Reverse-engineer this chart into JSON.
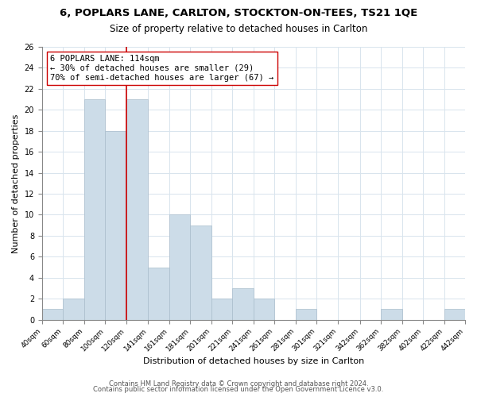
{
  "title": "6, POPLARS LANE, CARLTON, STOCKTON-ON-TEES, TS21 1QE",
  "subtitle": "Size of property relative to detached houses in Carlton",
  "xlabel": "Distribution of detached houses by size in Carlton",
  "ylabel": "Number of detached properties",
  "bar_color": "#ccdce8",
  "bar_edgecolor": "#aabdcc",
  "vline_x": 120,
  "vline_color": "#cc0000",
  "annotation_line1": "6 POPLARS LANE: 114sqm",
  "annotation_line2": "← 30% of detached houses are smaller (29)",
  "annotation_line3": "70% of semi-detached houses are larger (67) →",
  "bins": [
    40,
    60,
    80,
    100,
    120,
    141,
    161,
    181,
    201,
    221,
    241,
    261,
    281,
    301,
    321,
    342,
    362,
    382,
    402,
    422,
    442
  ],
  "counts": [
    1,
    2,
    21,
    18,
    21,
    5,
    10,
    9,
    2,
    3,
    2,
    0,
    1,
    0,
    0,
    0,
    1,
    0,
    0,
    1
  ],
  "ylim": [
    0,
    26
  ],
  "yticks": [
    0,
    2,
    4,
    6,
    8,
    10,
    12,
    14,
    16,
    18,
    20,
    22,
    24,
    26
  ],
  "footnote1": "Contains HM Land Registry data © Crown copyright and database right 2024.",
  "footnote2": "Contains public sector information licensed under the Open Government Licence v3.0.",
  "background_color": "#ffffff",
  "grid_color": "#d8e4ed",
  "title_fontsize": 9.5,
  "subtitle_fontsize": 8.5,
  "annotation_fontsize": 7.5,
  "axis_label_fontsize": 8,
  "tick_fontsize": 6.5,
  "footnote_fontsize": 6
}
